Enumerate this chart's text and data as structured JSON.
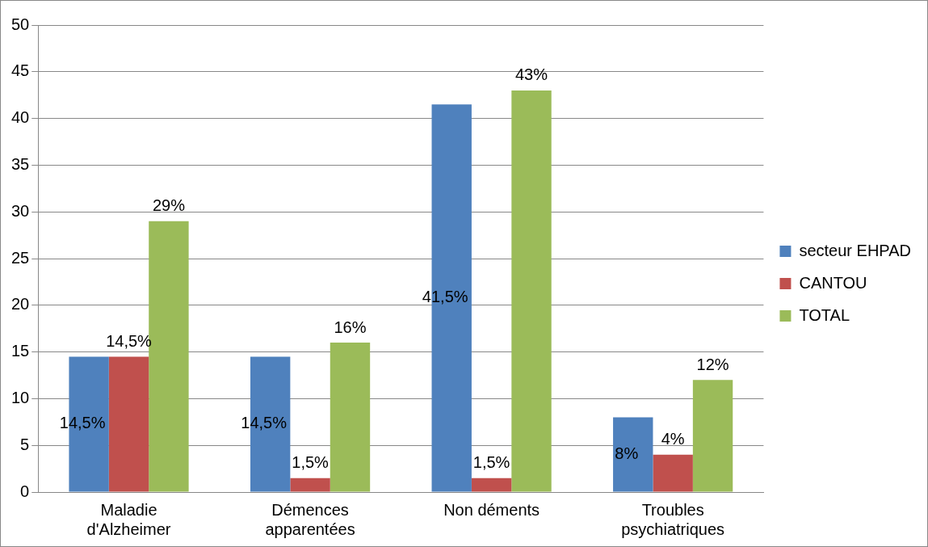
{
  "chart_data": {
    "type": "bar",
    "categories": [
      "Maladie d'Alzheimer",
      "Démences apparentées",
      "Non déments",
      "Troubles psychiatriques"
    ],
    "series": [
      {
        "name": "secteur EHPAD",
        "color": "#4f81bd",
        "values": [
          14.5,
          14.5,
          41.5,
          8
        ],
        "value_labels": [
          "14,5%",
          "14,5%",
          "41,5%",
          "8%"
        ]
      },
      {
        "name": "CANTOU",
        "color": "#c0504d",
        "values": [
          14.5,
          1.5,
          1.5,
          4
        ],
        "value_labels": [
          "14,5%",
          "1,5%",
          "1,5%",
          "4%"
        ]
      },
      {
        "name": "TOTAL",
        "color": "#9bbb59",
        "values": [
          29,
          16,
          43,
          12
        ],
        "value_labels": [
          "29%",
          "16%",
          "43%",
          "12%"
        ]
      }
    ],
    "ylim": [
      0,
      50
    ],
    "yticks": [
      0,
      5,
      10,
      15,
      20,
      25,
      30,
      35,
      40,
      45,
      50
    ],
    "grid": "y",
    "legend": "right"
  }
}
